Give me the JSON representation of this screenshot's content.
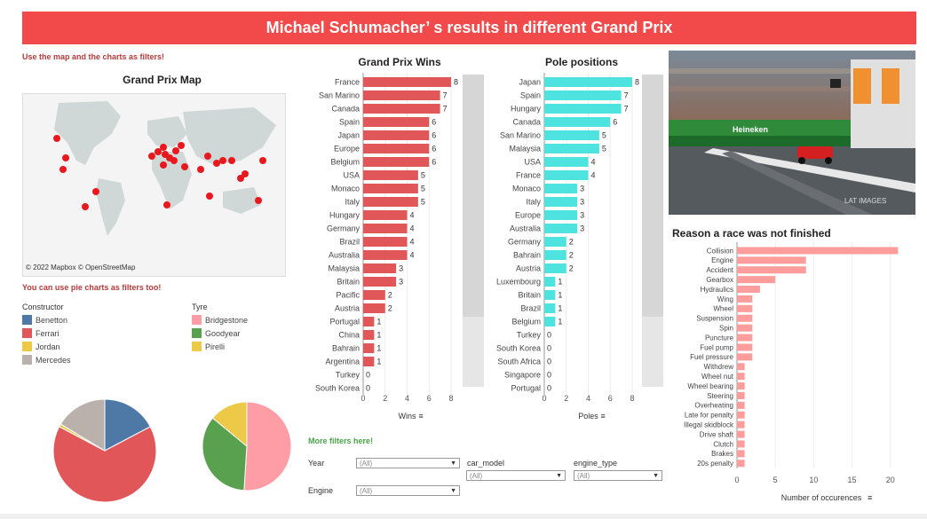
{
  "header": {
    "title": "Michael Schumacher’ s results  in different Grand Prix"
  },
  "hints": {
    "map_hint": "Use the map and the charts as filters!",
    "pie_hint": "You can use pie charts as filters too!",
    "more_filters": "More filters here!"
  },
  "map": {
    "title": "Grand Prix Map",
    "credit": "© 2022 Mapbox  © OpenStreetMap",
    "marker_color": "#e8191e"
  },
  "legend": {
    "constructor_title": "Constructor",
    "constructors": [
      {
        "label": "Benetton",
        "color": "#4e79a7"
      },
      {
        "label": "Ferrari",
        "color": "#e15759"
      },
      {
        "label": "Jordan",
        "color": "#edc948"
      },
      {
        "label": "Mercedes",
        "color": "#bab0ac"
      }
    ],
    "tyre_title": "Tyre",
    "tyres": [
      {
        "label": "Bridgestone",
        "color": "#ff9da7"
      },
      {
        "label": "Goodyear",
        "color": "#59a14f"
      },
      {
        "label": "Pirelli",
        "color": "#edc948"
      }
    ]
  },
  "filters": {
    "year_label": "Year",
    "year_value": "(All)",
    "engine_label": "Engine",
    "engine_value": "(All)",
    "car_model_label": "car_model",
    "car_model_value": "(All)",
    "engine_type_label": "engine_type",
    "engine_type_value": "(All)"
  },
  "photo": {
    "watermark": "LAT IMAGES",
    "banner_text": "Heineken"
  },
  "chart_data": [
    {
      "type": "bar",
      "title": "Grand Prix Wins",
      "xlabel": "Wins",
      "color": "#e15759",
      "xlim": [
        0,
        8
      ],
      "ticks": [
        0,
        2,
        4,
        6,
        8
      ],
      "categories": [
        "France",
        "San Marino",
        "Canada",
        "Spain",
        "Japan",
        "Europe",
        "Belgium",
        "USA",
        "Monaco",
        "Italy",
        "Hungary",
        "Germany",
        "Brazil",
        "Australia",
        "Malaysia",
        "Britain",
        "Pacific",
        "Austria",
        "Portugal",
        "China",
        "Bahrain",
        "Argentina",
        "Turkey",
        "South Korea"
      ],
      "values": [
        8,
        7,
        7,
        6,
        6,
        6,
        6,
        5,
        5,
        5,
        4,
        4,
        4,
        4,
        3,
        3,
        2,
        2,
        1,
        1,
        1,
        1,
        0,
        0
      ]
    },
    {
      "type": "bar",
      "title": "Pole positions",
      "xlabel": "Poles",
      "color": "#4fe3df",
      "xlim": [
        0,
        8
      ],
      "ticks": [
        0,
        2,
        4,
        6,
        8
      ],
      "categories": [
        "Japan",
        "Spain",
        "Hungary",
        "Canada",
        "San Marino",
        "Malaysia",
        "USA",
        "France",
        "Monaco",
        "Italy",
        "Europe",
        "Australia",
        "Germany",
        "Bahrain",
        "Austria",
        "Luxembourg",
        "Britain",
        "Brazil",
        "Belgium",
        "Turkey",
        "South Korea",
        "South Africa",
        "Singapore",
        "Portugal"
      ],
      "values": [
        8,
        7,
        7,
        6,
        5,
        5,
        4,
        4,
        3,
        3,
        3,
        3,
        2,
        2,
        2,
        1,
        1,
        1,
        1,
        0,
        0,
        0,
        0,
        0
      ]
    },
    {
      "type": "bar",
      "title": "Reason a race was not finished",
      "xlabel": "Number of occurences",
      "color": "#ff9c9c",
      "xlim": [
        0,
        22
      ],
      "ticks": [
        0,
        5,
        10,
        15,
        20
      ],
      "categories": [
        "Collision",
        "Engine",
        "Accident",
        "Gearbox",
        "Hydraulics",
        "Wing",
        "Wheel",
        "Suspension",
        "Spin",
        "Puncture",
        "Fuel pump",
        "Fuel pressure",
        "Withdrew",
        "Wheel nut",
        "Wheel bearing",
        "Steering",
        "Overheating",
        "Late for penalty",
        "Illegal skidblock",
        "Drive shaft",
        "Clutch",
        "Brakes",
        "20s penalty"
      ],
      "values": [
        21,
        9,
        9,
        5,
        3,
        2,
        2,
        2,
        2,
        2,
        2,
        2,
        1,
        1,
        1,
        1,
        1,
        1,
        1,
        1,
        1,
        1,
        1
      ]
    },
    {
      "type": "pie",
      "title": "",
      "labels": [
        "Benetton",
        "Ferrari",
        "Jordan",
        "Mercedes"
      ],
      "values": [
        19,
        72,
        1,
        18
      ],
      "colors": [
        "#4e79a7",
        "#e15759",
        "#edc948",
        "#bab0ac"
      ]
    },
    {
      "type": "pie",
      "title": "",
      "labels": [
        "Bridgestone",
        "Goodyear",
        "Pirelli"
      ],
      "values": [
        51,
        35,
        14
      ],
      "colors": [
        "#ff9da7",
        "#59a14f",
        "#edc948"
      ]
    }
  ]
}
